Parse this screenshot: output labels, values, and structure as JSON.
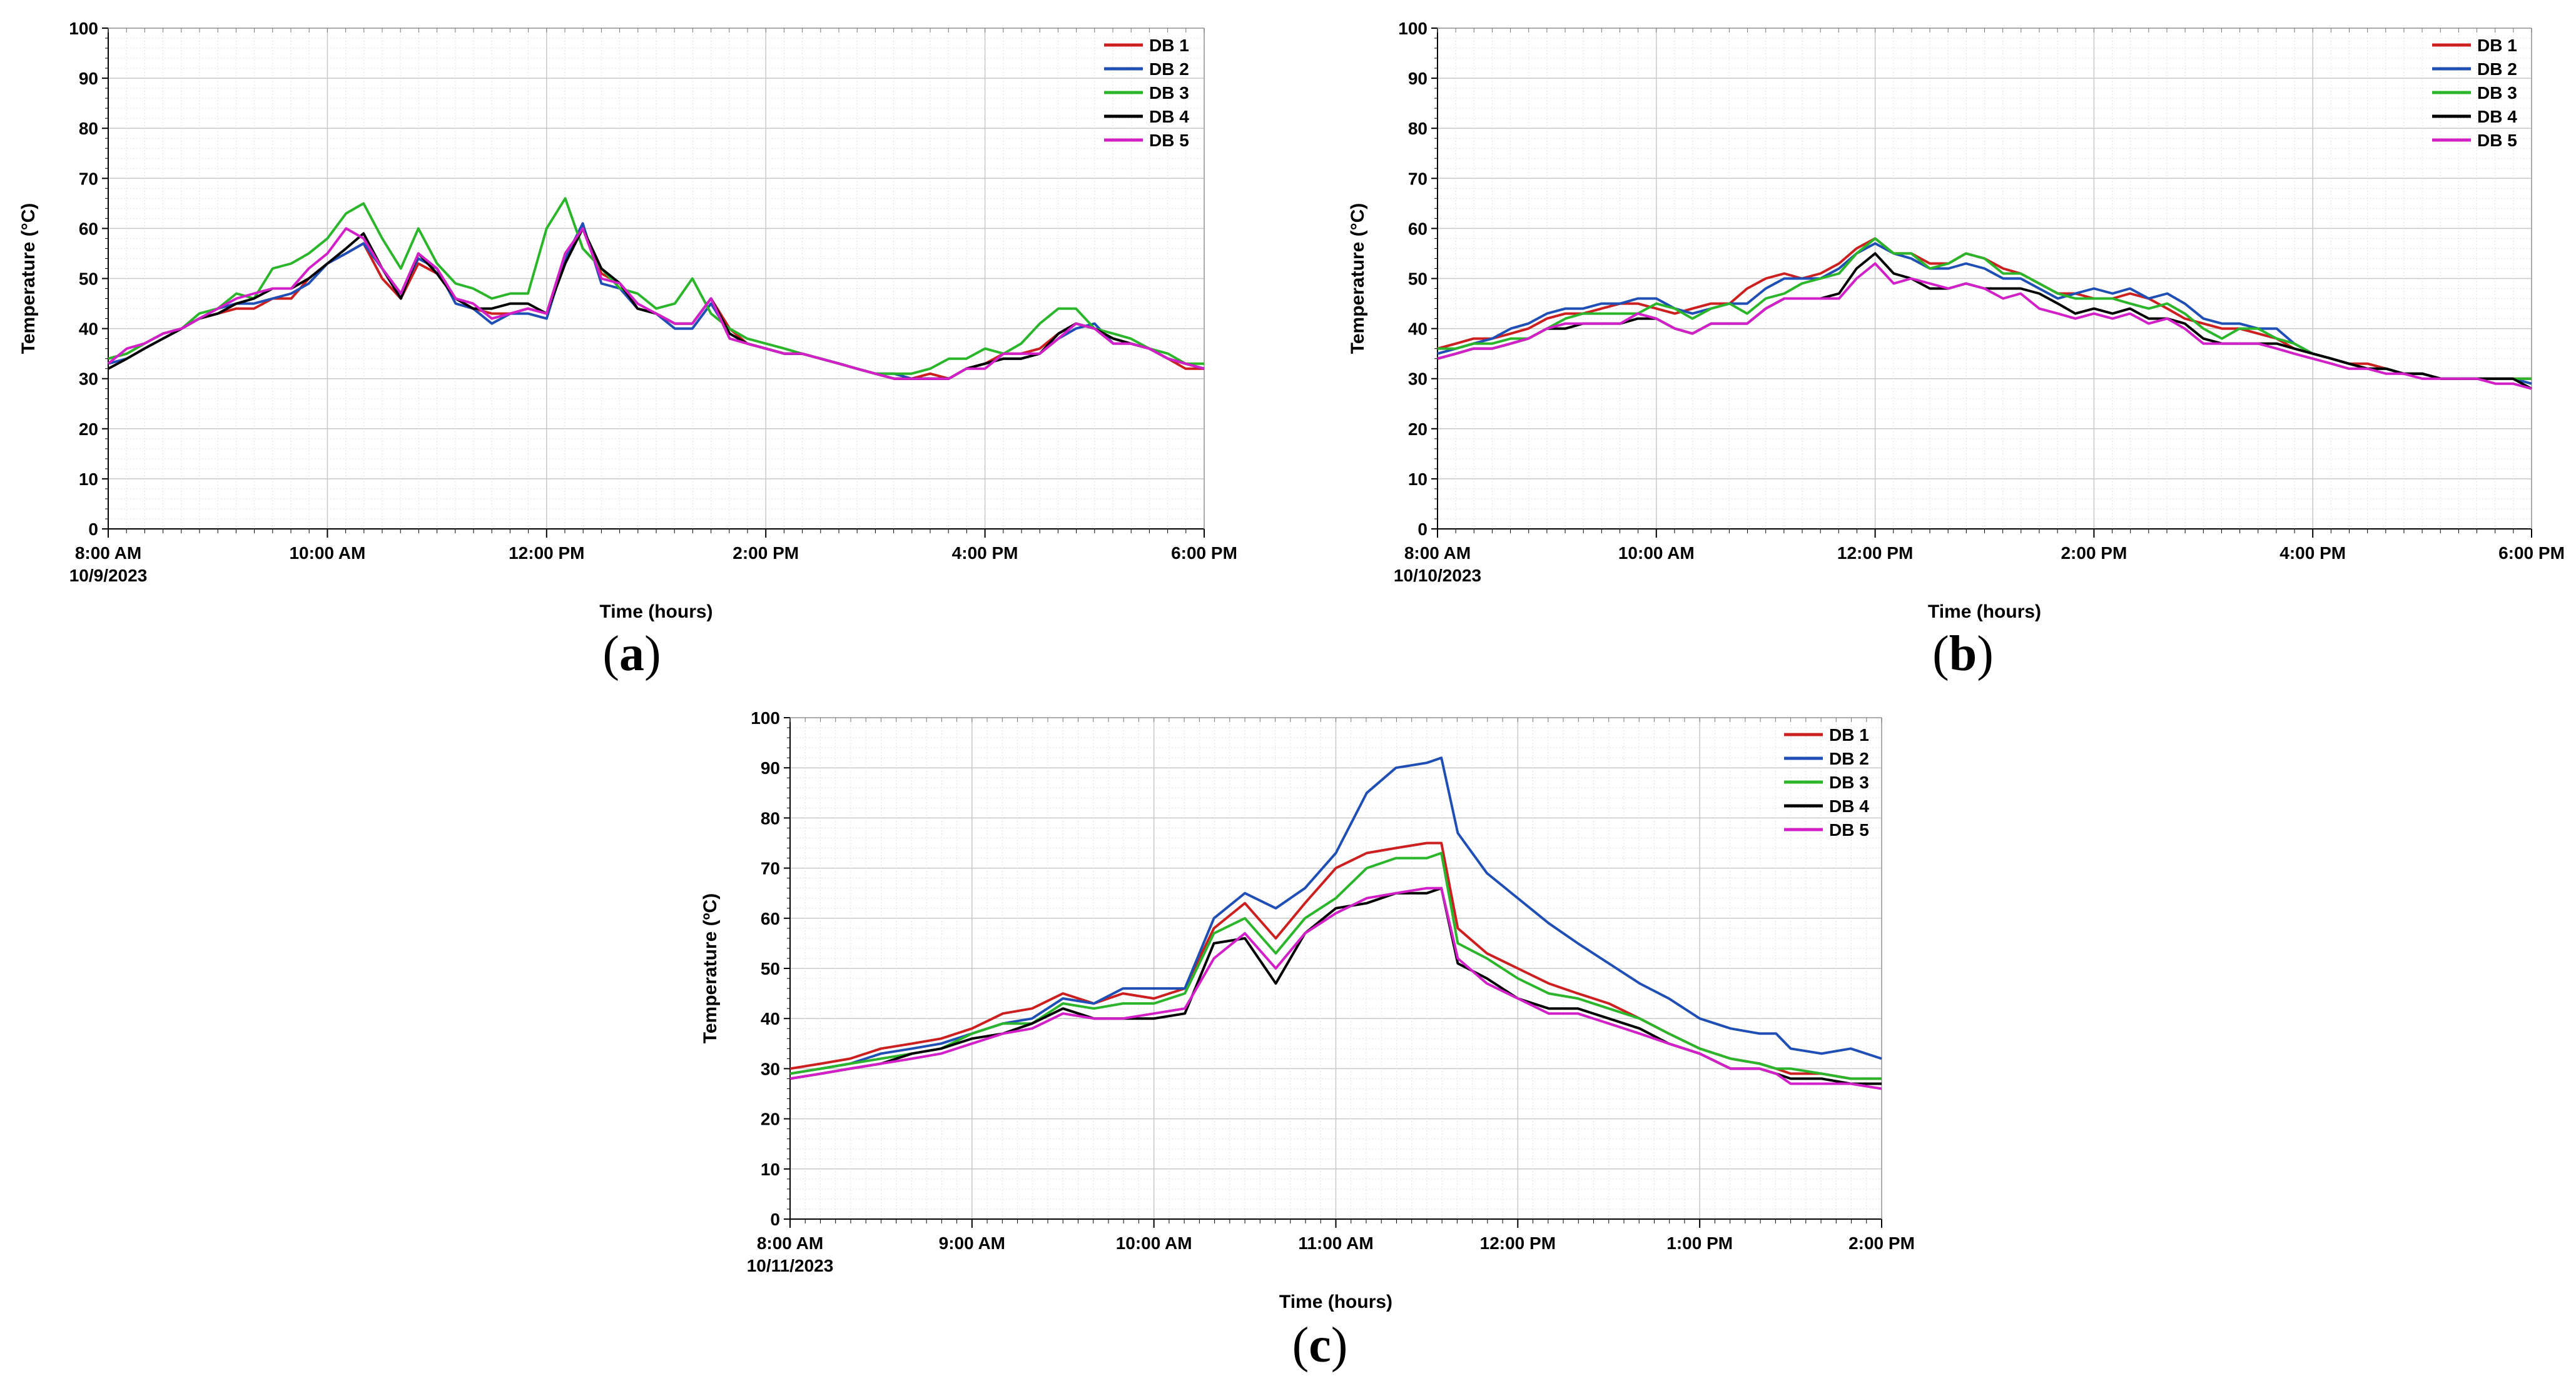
{
  "figure": {
    "series_colors": {
      "DB 1": "#cc1f1f",
      "DB 2": "#1f4fb4",
      "DB 3": "#2bb52b",
      "DB 4": "#000000",
      "DB 5": "#d21fc8"
    }
  },
  "chart_data": [
    {
      "id": "a",
      "panel_label": "a",
      "type": "line",
      "xlabel": "Time (hours)",
      "ylabel": "Temperature (°C)",
      "ylim": [
        0,
        100
      ],
      "yticks": [
        0,
        10,
        20,
        30,
        40,
        50,
        60,
        70,
        80,
        90,
        100
      ],
      "xlim": [
        8,
        18
      ],
      "xticks": [
        {
          "value": 8,
          "label": "8:00 AM"
        },
        {
          "value": 10,
          "label": "10:00 AM"
        },
        {
          "value": 12,
          "label": "12:00 PM"
        },
        {
          "value": 14,
          "label": "2:00 PM"
        },
        {
          "value": 16,
          "label": "4:00 PM"
        },
        {
          "value": 18,
          "label": "6:00 PM"
        }
      ],
      "date_label": "10/9/2023",
      "legend": [
        "DB 1",
        "DB 2",
        "DB 3",
        "DB 4",
        "DB 5"
      ],
      "legend_position": "top-right",
      "grid": true,
      "x": [
        8.0,
        8.17,
        8.33,
        8.5,
        8.67,
        8.83,
        9.0,
        9.17,
        9.33,
        9.5,
        9.67,
        9.83,
        10.0,
        10.17,
        10.33,
        10.5,
        10.67,
        10.83,
        11.0,
        11.17,
        11.33,
        11.5,
        11.67,
        11.83,
        12.0,
        12.17,
        12.33,
        12.5,
        12.67,
        12.83,
        13.0,
        13.17,
        13.33,
        13.5,
        13.67,
        13.83,
        14.0,
        14.17,
        14.33,
        14.5,
        14.67,
        14.83,
        15.0,
        15.17,
        15.33,
        15.5,
        15.67,
        15.83,
        16.0,
        16.17,
        16.33,
        16.5,
        16.67,
        16.83,
        17.0,
        17.17,
        17.33,
        17.5,
        17.67,
        17.83,
        18.0
      ],
      "series": [
        {
          "name": "DB 1",
          "values": [
            34,
            35,
            37,
            39,
            40,
            42,
            43,
            44,
            44,
            46,
            46,
            50,
            53,
            55,
            57,
            50,
            46,
            53,
            51,
            46,
            44,
            43,
            43,
            44,
            43,
            55,
            60,
            51,
            49,
            44,
            43,
            41,
            41,
            46,
            40,
            37,
            36,
            35,
            35,
            34,
            33,
            32,
            31,
            30,
            30,
            31,
            30,
            32,
            33,
            35,
            35,
            36,
            39,
            41,
            40,
            38,
            37,
            36,
            34,
            32,
            32
          ]
        },
        {
          "name": "DB 2",
          "values": [
            33,
            34,
            36,
            38,
            40,
            42,
            44,
            45,
            45,
            46,
            47,
            49,
            53,
            55,
            57,
            52,
            47,
            54,
            52,
            45,
            44,
            41,
            43,
            43,
            42,
            54,
            61,
            49,
            48,
            44,
            43,
            40,
            40,
            45,
            39,
            37,
            36,
            35,
            35,
            34,
            33,
            32,
            31,
            31,
            30,
            30,
            30,
            32,
            33,
            34,
            34,
            35,
            38,
            40,
            41,
            37,
            37,
            36,
            34,
            33,
            32
          ]
        },
        {
          "name": "DB 3",
          "values": [
            34,
            35,
            37,
            39,
            40,
            43,
            44,
            47,
            46,
            52,
            53,
            55,
            58,
            63,
            65,
            58,
            52,
            60,
            53,
            49,
            48,
            46,
            47,
            47,
            60,
            66,
            56,
            52,
            48,
            47,
            44,
            45,
            50,
            43,
            40,
            38,
            37,
            36,
            35,
            34,
            33,
            32,
            31,
            31,
            31,
            32,
            34,
            34,
            36,
            35,
            37,
            41,
            44,
            44,
            40,
            39,
            38,
            36,
            35,
            33,
            33
          ]
        },
        {
          "name": "DB 4",
          "values": [
            32,
            34,
            36,
            38,
            40,
            42,
            43,
            45,
            46,
            48,
            48,
            50,
            53,
            56,
            59,
            52,
            46,
            55,
            51,
            46,
            44,
            44,
            45,
            45,
            43,
            53,
            60,
            52,
            49,
            44,
            43,
            41,
            41,
            46,
            39,
            37,
            36,
            35,
            35,
            34,
            33,
            32,
            31,
            30,
            30,
            30,
            30,
            32,
            33,
            34,
            34,
            35,
            39,
            41,
            40,
            38,
            37,
            36,
            34,
            33,
            32
          ]
        },
        {
          "name": "DB 5",
          "values": [
            33,
            36,
            37,
            39,
            40,
            42,
            44,
            46,
            47,
            48,
            48,
            52,
            55,
            60,
            58,
            52,
            47,
            55,
            52,
            46,
            45,
            42,
            43,
            44,
            43,
            55,
            60,
            50,
            49,
            45,
            43,
            41,
            41,
            46,
            38,
            37,
            36,
            35,
            35,
            34,
            33,
            32,
            31,
            30,
            30,
            30,
            30,
            32,
            32,
            35,
            35,
            35,
            38,
            41,
            40,
            37,
            37,
            36,
            34,
            33,
            32
          ]
        }
      ]
    },
    {
      "id": "b",
      "panel_label": "b",
      "type": "line",
      "xlabel": "Time (hours)",
      "ylabel": "Temperature (°C)",
      "ylim": [
        0,
        100
      ],
      "yticks": [
        0,
        10,
        20,
        30,
        40,
        50,
        60,
        70,
        80,
        90,
        100
      ],
      "xlim": [
        8,
        18
      ],
      "xticks": [
        {
          "value": 8,
          "label": "8:00 AM"
        },
        {
          "value": 10,
          "label": "10:00 AM"
        },
        {
          "value": 12,
          "label": "12:00 PM"
        },
        {
          "value": 14,
          "label": "2:00 PM"
        },
        {
          "value": 16,
          "label": "4:00 PM"
        },
        {
          "value": 18,
          "label": "6:00 PM"
        }
      ],
      "date_label": "10/10/2023",
      "legend": [
        "DB 1",
        "DB 2",
        "DB 3",
        "DB 4",
        "DB 5"
      ],
      "legend_position": "top-right",
      "grid": true,
      "x": [
        8.0,
        8.17,
        8.33,
        8.5,
        8.67,
        8.83,
        9.0,
        9.17,
        9.33,
        9.5,
        9.67,
        9.83,
        10.0,
        10.17,
        10.33,
        10.5,
        10.67,
        10.83,
        11.0,
        11.17,
        11.33,
        11.5,
        11.67,
        11.83,
        12.0,
        12.17,
        12.33,
        12.5,
        12.67,
        12.83,
        13.0,
        13.17,
        13.33,
        13.5,
        13.67,
        13.83,
        14.0,
        14.17,
        14.33,
        14.5,
        14.67,
        14.83,
        15.0,
        15.17,
        15.33,
        15.5,
        15.67,
        15.83,
        16.0,
        16.17,
        16.33,
        16.5,
        16.67,
        16.83,
        17.0,
        17.17,
        17.33,
        17.5,
        17.67,
        17.83,
        18.0
      ],
      "series": [
        {
          "name": "DB 1",
          "values": [
            36,
            37,
            38,
            38,
            39,
            40,
            42,
            43,
            43,
            44,
            45,
            45,
            44,
            43,
            44,
            45,
            45,
            48,
            50,
            51,
            50,
            51,
            53,
            56,
            58,
            55,
            55,
            53,
            53,
            55,
            54,
            52,
            51,
            49,
            47,
            47,
            46,
            46,
            47,
            46,
            44,
            42,
            41,
            40,
            40,
            39,
            38,
            36,
            35,
            34,
            33,
            33,
            32,
            31,
            31,
            30,
            30,
            30,
            30,
            30,
            30
          ]
        },
        {
          "name": "DB 2",
          "values": [
            35,
            36,
            37,
            38,
            40,
            41,
            43,
            44,
            44,
            45,
            45,
            46,
            46,
            44,
            43,
            44,
            45,
            45,
            48,
            50,
            50,
            50,
            52,
            55,
            57,
            55,
            54,
            52,
            52,
            53,
            52,
            50,
            50,
            48,
            46,
            47,
            48,
            47,
            48,
            46,
            47,
            45,
            42,
            41,
            41,
            40,
            40,
            37,
            35,
            34,
            33,
            32,
            32,
            31,
            31,
            30,
            30,
            30,
            30,
            30,
            29
          ]
        },
        {
          "name": "DB 3",
          "values": [
            36,
            36,
            37,
            37,
            38,
            38,
            40,
            42,
            43,
            43,
            43,
            43,
            45,
            44,
            42,
            44,
            45,
            43,
            46,
            47,
            49,
            50,
            51,
            55,
            58,
            55,
            55,
            52,
            53,
            55,
            54,
            51,
            51,
            49,
            47,
            46,
            46,
            46,
            45,
            44,
            45,
            43,
            40,
            38,
            40,
            40,
            38,
            37,
            35,
            34,
            33,
            32,
            32,
            31,
            31,
            30,
            30,
            30,
            30,
            30,
            30
          ]
        },
        {
          "name": "DB 4",
          "values": [
            34,
            35,
            36,
            36,
            37,
            38,
            40,
            40,
            41,
            41,
            41,
            42,
            42,
            40,
            39,
            41,
            41,
            41,
            44,
            46,
            46,
            46,
            47,
            52,
            55,
            51,
            50,
            48,
            48,
            49,
            48,
            48,
            48,
            47,
            45,
            43,
            44,
            43,
            44,
            42,
            42,
            41,
            38,
            37,
            37,
            37,
            37,
            36,
            35,
            34,
            33,
            32,
            32,
            31,
            31,
            30,
            30,
            30,
            30,
            30,
            28
          ]
        },
        {
          "name": "DB 5",
          "values": [
            34,
            35,
            36,
            36,
            37,
            38,
            40,
            41,
            41,
            41,
            41,
            43,
            42,
            40,
            39,
            41,
            41,
            41,
            44,
            46,
            46,
            46,
            46,
            50,
            53,
            49,
            50,
            49,
            48,
            49,
            48,
            46,
            47,
            44,
            43,
            42,
            43,
            42,
            43,
            41,
            42,
            40,
            37,
            37,
            37,
            37,
            36,
            35,
            34,
            33,
            32,
            32,
            31,
            31,
            30,
            30,
            30,
            30,
            29,
            29,
            28
          ]
        }
      ]
    },
    {
      "id": "c",
      "panel_label": "c",
      "type": "line",
      "xlabel": "Time (hours)",
      "ylabel": "Temperature (ºC)",
      "ylim": [
        0,
        100
      ],
      "yticks": [
        0,
        10,
        20,
        30,
        40,
        50,
        60,
        70,
        80,
        90,
        100
      ],
      "xlim": [
        8,
        14
      ],
      "xticks": [
        {
          "value": 8,
          "label": "8:00 AM"
        },
        {
          "value": 9,
          "label": "9:00 AM"
        },
        {
          "value": 10,
          "label": "10:00 AM"
        },
        {
          "value": 11,
          "label": "11:00 AM"
        },
        {
          "value": 12,
          "label": "12:00 PM"
        },
        {
          "value": 13,
          "label": "1:00 PM"
        },
        {
          "value": 14,
          "label": "2:00 PM"
        }
      ],
      "date_label": "10/11/2023",
      "legend": [
        "DB 1",
        "DB 2",
        "DB 3",
        "DB 4",
        "DB 5"
      ],
      "legend_position": "top-right",
      "grid": true,
      "x": [
        8.0,
        8.17,
        8.33,
        8.5,
        8.67,
        8.83,
        9.0,
        9.17,
        9.33,
        9.5,
        9.67,
        9.83,
        10.0,
        10.17,
        10.33,
        10.5,
        10.67,
        10.83,
        11.0,
        11.17,
        11.33,
        11.5,
        11.58,
        11.67,
        11.83,
        12.0,
        12.17,
        12.33,
        12.5,
        12.67,
        12.83,
        13.0,
        13.17,
        13.33,
        13.42,
        13.5,
        13.67,
        13.83,
        14.0
      ],
      "series": [
        {
          "name": "DB 1",
          "values": [
            30,
            31,
            32,
            34,
            35,
            36,
            38,
            41,
            42,
            45,
            43,
            45,
            44,
            46,
            58,
            63,
            56,
            63,
            70,
            73,
            74,
            75,
            75,
            58,
            53,
            50,
            47,
            45,
            43,
            40,
            37,
            34,
            32,
            31,
            30,
            29,
            29,
            28,
            28
          ]
        },
        {
          "name": "DB 2",
          "values": [
            29,
            30,
            31,
            33,
            34,
            35,
            37,
            39,
            40,
            44,
            43,
            46,
            46,
            46,
            60,
            65,
            62,
            66,
            73,
            85,
            90,
            91,
            92,
            77,
            69,
            64,
            59,
            55,
            51,
            47,
            44,
            40,
            38,
            37,
            37,
            34,
            33,
            34,
            32
          ]
        },
        {
          "name": "DB 3",
          "values": [
            29,
            30,
            31,
            32,
            33,
            34,
            37,
            39,
            39,
            43,
            42,
            43,
            43,
            45,
            57,
            60,
            53,
            60,
            64,
            70,
            72,
            72,
            73,
            55,
            52,
            48,
            45,
            44,
            42,
            40,
            37,
            34,
            32,
            31,
            30,
            30,
            29,
            28,
            28
          ]
        },
        {
          "name": "DB 4",
          "values": [
            28,
            29,
            30,
            31,
            33,
            34,
            36,
            37,
            39,
            42,
            40,
            40,
            40,
            41,
            55,
            56,
            47,
            57,
            62,
            63,
            65,
            65,
            66,
            51,
            48,
            44,
            42,
            42,
            40,
            38,
            35,
            33,
            30,
            30,
            29,
            28,
            28,
            27,
            27
          ]
        },
        {
          "name": "DB 5",
          "values": [
            28,
            29,
            30,
            31,
            32,
            33,
            35,
            37,
            38,
            41,
            40,
            40,
            41,
            42,
            52,
            57,
            50,
            57,
            61,
            64,
            65,
            66,
            66,
            52,
            47,
            44,
            41,
            41,
            39,
            37,
            35,
            33,
            30,
            30,
            29,
            27,
            27,
            27,
            26
          ]
        }
      ]
    }
  ]
}
